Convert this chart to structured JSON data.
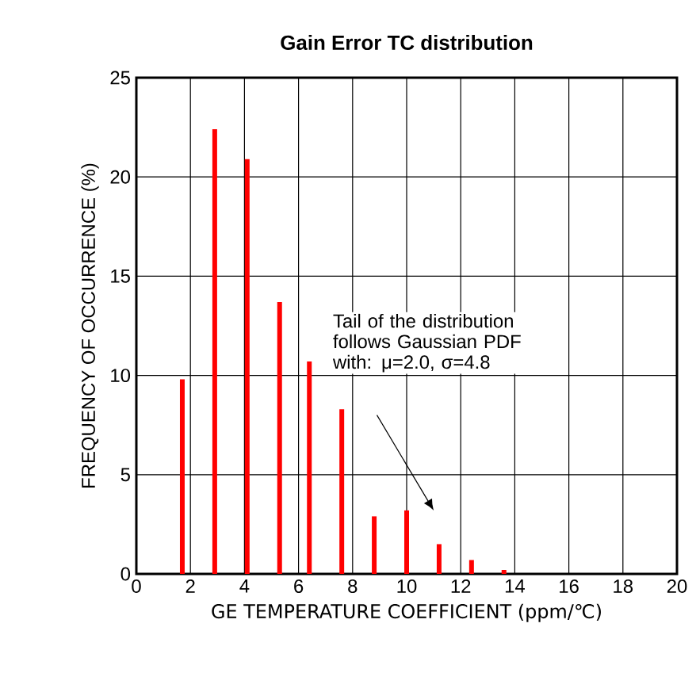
{
  "chart_data": {
    "type": "bar",
    "title": "Gain Error TC distribution",
    "xlabel": "GE TEMPERATURE COEFFICIENT (ppm/℃)",
    "ylabel": "FREQUENCY OF OCCURRENCE (%)",
    "x": [
      1.7,
      2.9,
      4.1,
      5.3,
      6.4,
      7.6,
      8.8,
      10.0,
      11.2,
      12.4,
      13.6
    ],
    "values": [
      9.8,
      22.4,
      20.9,
      13.7,
      10.7,
      8.3,
      2.9,
      3.2,
      1.5,
      0.7,
      0.2
    ],
    "color": "#ff0000",
    "xlim": [
      0,
      20
    ],
    "xticks": [
      0,
      2,
      4,
      6,
      8,
      10,
      12,
      14,
      16,
      18,
      20
    ],
    "ylim": [
      0,
      25
    ],
    "yticks": [
      0,
      5,
      10,
      15,
      20,
      25
    ],
    "grid": true,
    "annotations": [
      "Tail of the distribution follows Gaussian PDF with: μ=2.0, σ=4.8"
    ]
  }
}
